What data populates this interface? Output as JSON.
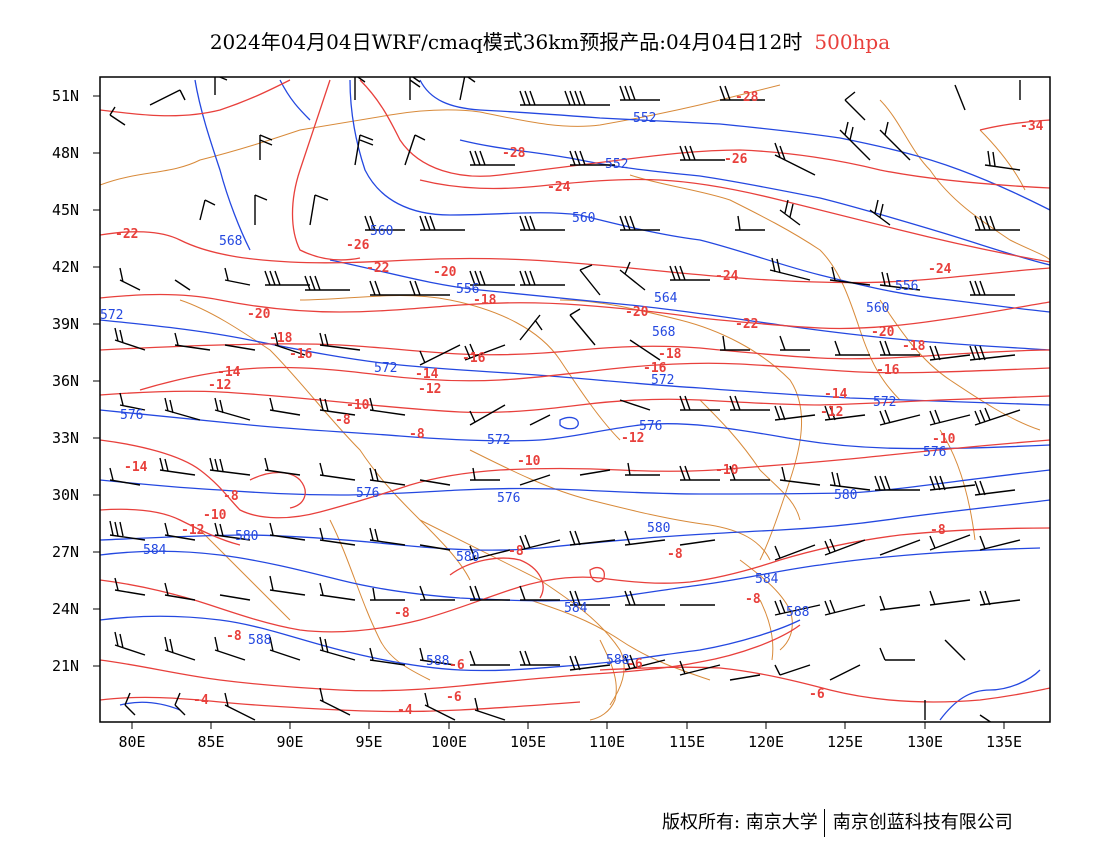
{
  "header": {
    "title": "2024年04月04日WRF/cmaq模式36km预报产品:04月04日12时",
    "level": "500hpa",
    "level_color": "#e8403c"
  },
  "axes": {
    "y_ticks": [
      "51N",
      "48N",
      "45N",
      "42N",
      "39N",
      "36N",
      "33N",
      "30N",
      "27N",
      "24N",
      "21N"
    ],
    "x_ticks": [
      "80E",
      "85E",
      "90E",
      "95E",
      "100E",
      "105E",
      "110E",
      "115E",
      "120E",
      "125E",
      "130E",
      "135E"
    ]
  },
  "legend_colors": {
    "height_contour": "#2448e0",
    "temperature_contour": "#e8403c",
    "boundary": "#d88a3a",
    "wind_barb": "#000000"
  },
  "height_labels": [
    "552",
    "556",
    "560",
    "564",
    "568",
    "572",
    "576",
    "580",
    "584",
    "588"
  ],
  "temperature_labels": [
    "-34",
    "-28",
    "-26",
    "-24",
    "-22",
    "-20",
    "-18",
    "-16",
    "-14",
    "-12",
    "-10",
    "-8",
    "-6",
    "-4"
  ],
  "footer": {
    "copyright": "版权所有: 南京大学",
    "company": "南京创蓝科技有限公司"
  }
}
